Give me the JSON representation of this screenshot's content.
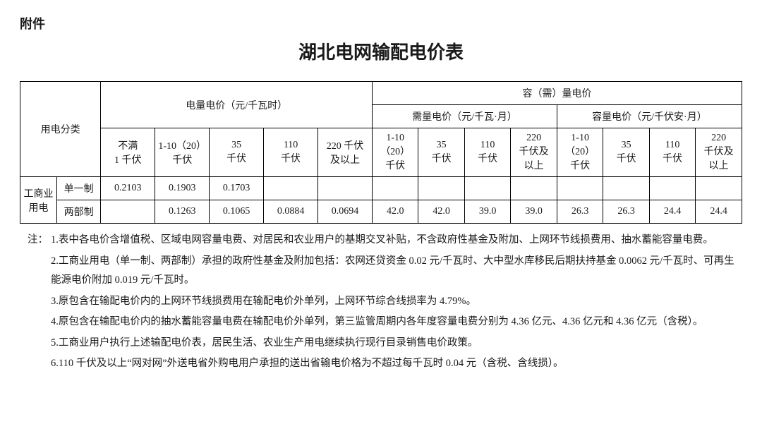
{
  "attachment_label": "附件",
  "title": "湖北电网输配电价表",
  "table": {
    "headers": {
      "category": "用电分类",
      "energy_price": "电量电价（元/千瓦时）",
      "capacity_price": "容（需）量电价",
      "demand_price": "需量电价（元/千瓦·月）",
      "cap_price": "容量电价（元/千伏安·月）",
      "eq_cols": [
        "不满\n1 千伏",
        "1-10（20）\n千伏",
        "35\n千伏",
        "110\n千伏",
        "220 千伏\n及以上"
      ],
      "dc_cols": [
        "1-10\n（20）\n千伏",
        "35\n千伏",
        "110\n千伏",
        "220\n千伏及\n以上"
      ]
    },
    "rows": [
      {
        "cat1": "工商业\n用电",
        "cat2": "单一制",
        "eq": [
          "0.2103",
          "0.1903",
          "0.1703",
          "",
          ""
        ],
        "demand": [
          "",
          "",
          "",
          ""
        ],
        "cap": [
          "",
          "",
          "",
          ""
        ]
      },
      {
        "cat2": "两部制",
        "eq": [
          "",
          "0.1263",
          "0.1065",
          "0.0884",
          "0.0694"
        ],
        "demand": [
          "42.0",
          "42.0",
          "39.0",
          "39.0"
        ],
        "cap": [
          "26.3",
          "26.3",
          "24.4",
          "24.4"
        ]
      }
    ]
  },
  "notes_label": "注：",
  "notes": [
    "1.表中各电价含增值税、区域电网容量电费、对居民和农业用户的基期交叉补贴，不含政府性基金及附加、上网环节线损费用、抽水蓄能容量电费。",
    "2.工商业用电（单一制、两部制）承担的政府性基金及附加包括：农网还贷资金 0.02 元/千瓦时、大中型水库移民后期扶持基金 0.0062 元/千瓦时、可再生能源电价附加 0.019 元/千瓦时。",
    "3.原包含在输配电价内的上网环节线损费用在输配电价外单列，上网环节综合线损率为 4.79%。",
    "4.原包含在输配电价内的抽水蓄能容量电费在输配电价外单列，第三监管周期内各年度容量电费分别为 4.36 亿元、4.36 亿元和 4.36 亿元（含税）。",
    "5.工商业用户执行上述输配电价表，居民生活、农业生产用电继续执行现行目录销售电价政策。",
    "6.110 千伏及以上“网对网”外送电省外购电用户承担的送出省输电价格为不超过每千瓦时 0.04 元（含税、含线损）。"
  ]
}
